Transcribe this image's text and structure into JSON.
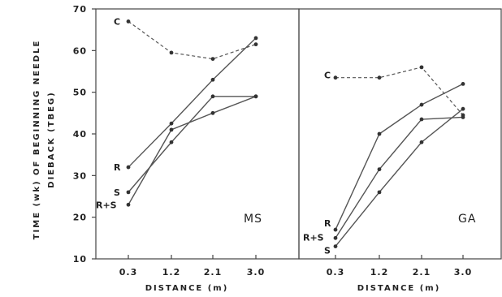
{
  "chart_data": {
    "type": "line",
    "ylabel_line1": "TIME (wk) OF BEGINNING NEEDLE",
    "ylabel_line2": "DIEBACK  (TBEG)",
    "ylim": [
      10,
      70
    ],
    "yticks": [
      10,
      20,
      30,
      40,
      50,
      60,
      70
    ],
    "x_categories": [
      "0.3",
      "1.2",
      "2.1",
      "3.0"
    ],
    "panels": [
      {
        "panel_label": "MS",
        "xlabel": "DISTANCE  (m)",
        "series": [
          {
            "name": "C",
            "style": "dashed",
            "values": [
              67,
              59.5,
              58,
              61.5
            ]
          },
          {
            "name": "R",
            "style": "solid",
            "values": [
              32,
              42.5,
              53,
              63
            ]
          },
          {
            "name": "S",
            "style": "solid",
            "values": [
              26,
              38,
              49,
              49
            ]
          },
          {
            "name": "R+S",
            "style": "solid",
            "values": [
              23,
              41,
              45,
              49
            ]
          }
        ]
      },
      {
        "panel_label": "GA",
        "xlabel": "DISTANCE  (m)",
        "series": [
          {
            "name": "C",
            "style": "dashed",
            "values": [
              53.5,
              53.5,
              56,
              44.5
            ]
          },
          {
            "name": "R",
            "style": "solid",
            "values": [
              17,
              40,
              47,
              52
            ]
          },
          {
            "name": "R+S",
            "style": "solid",
            "values": [
              15,
              31.5,
              43.5,
              44
            ]
          },
          {
            "name": "S",
            "style": "solid",
            "values": [
              13,
              26,
              38,
              46
            ]
          }
        ]
      }
    ]
  }
}
